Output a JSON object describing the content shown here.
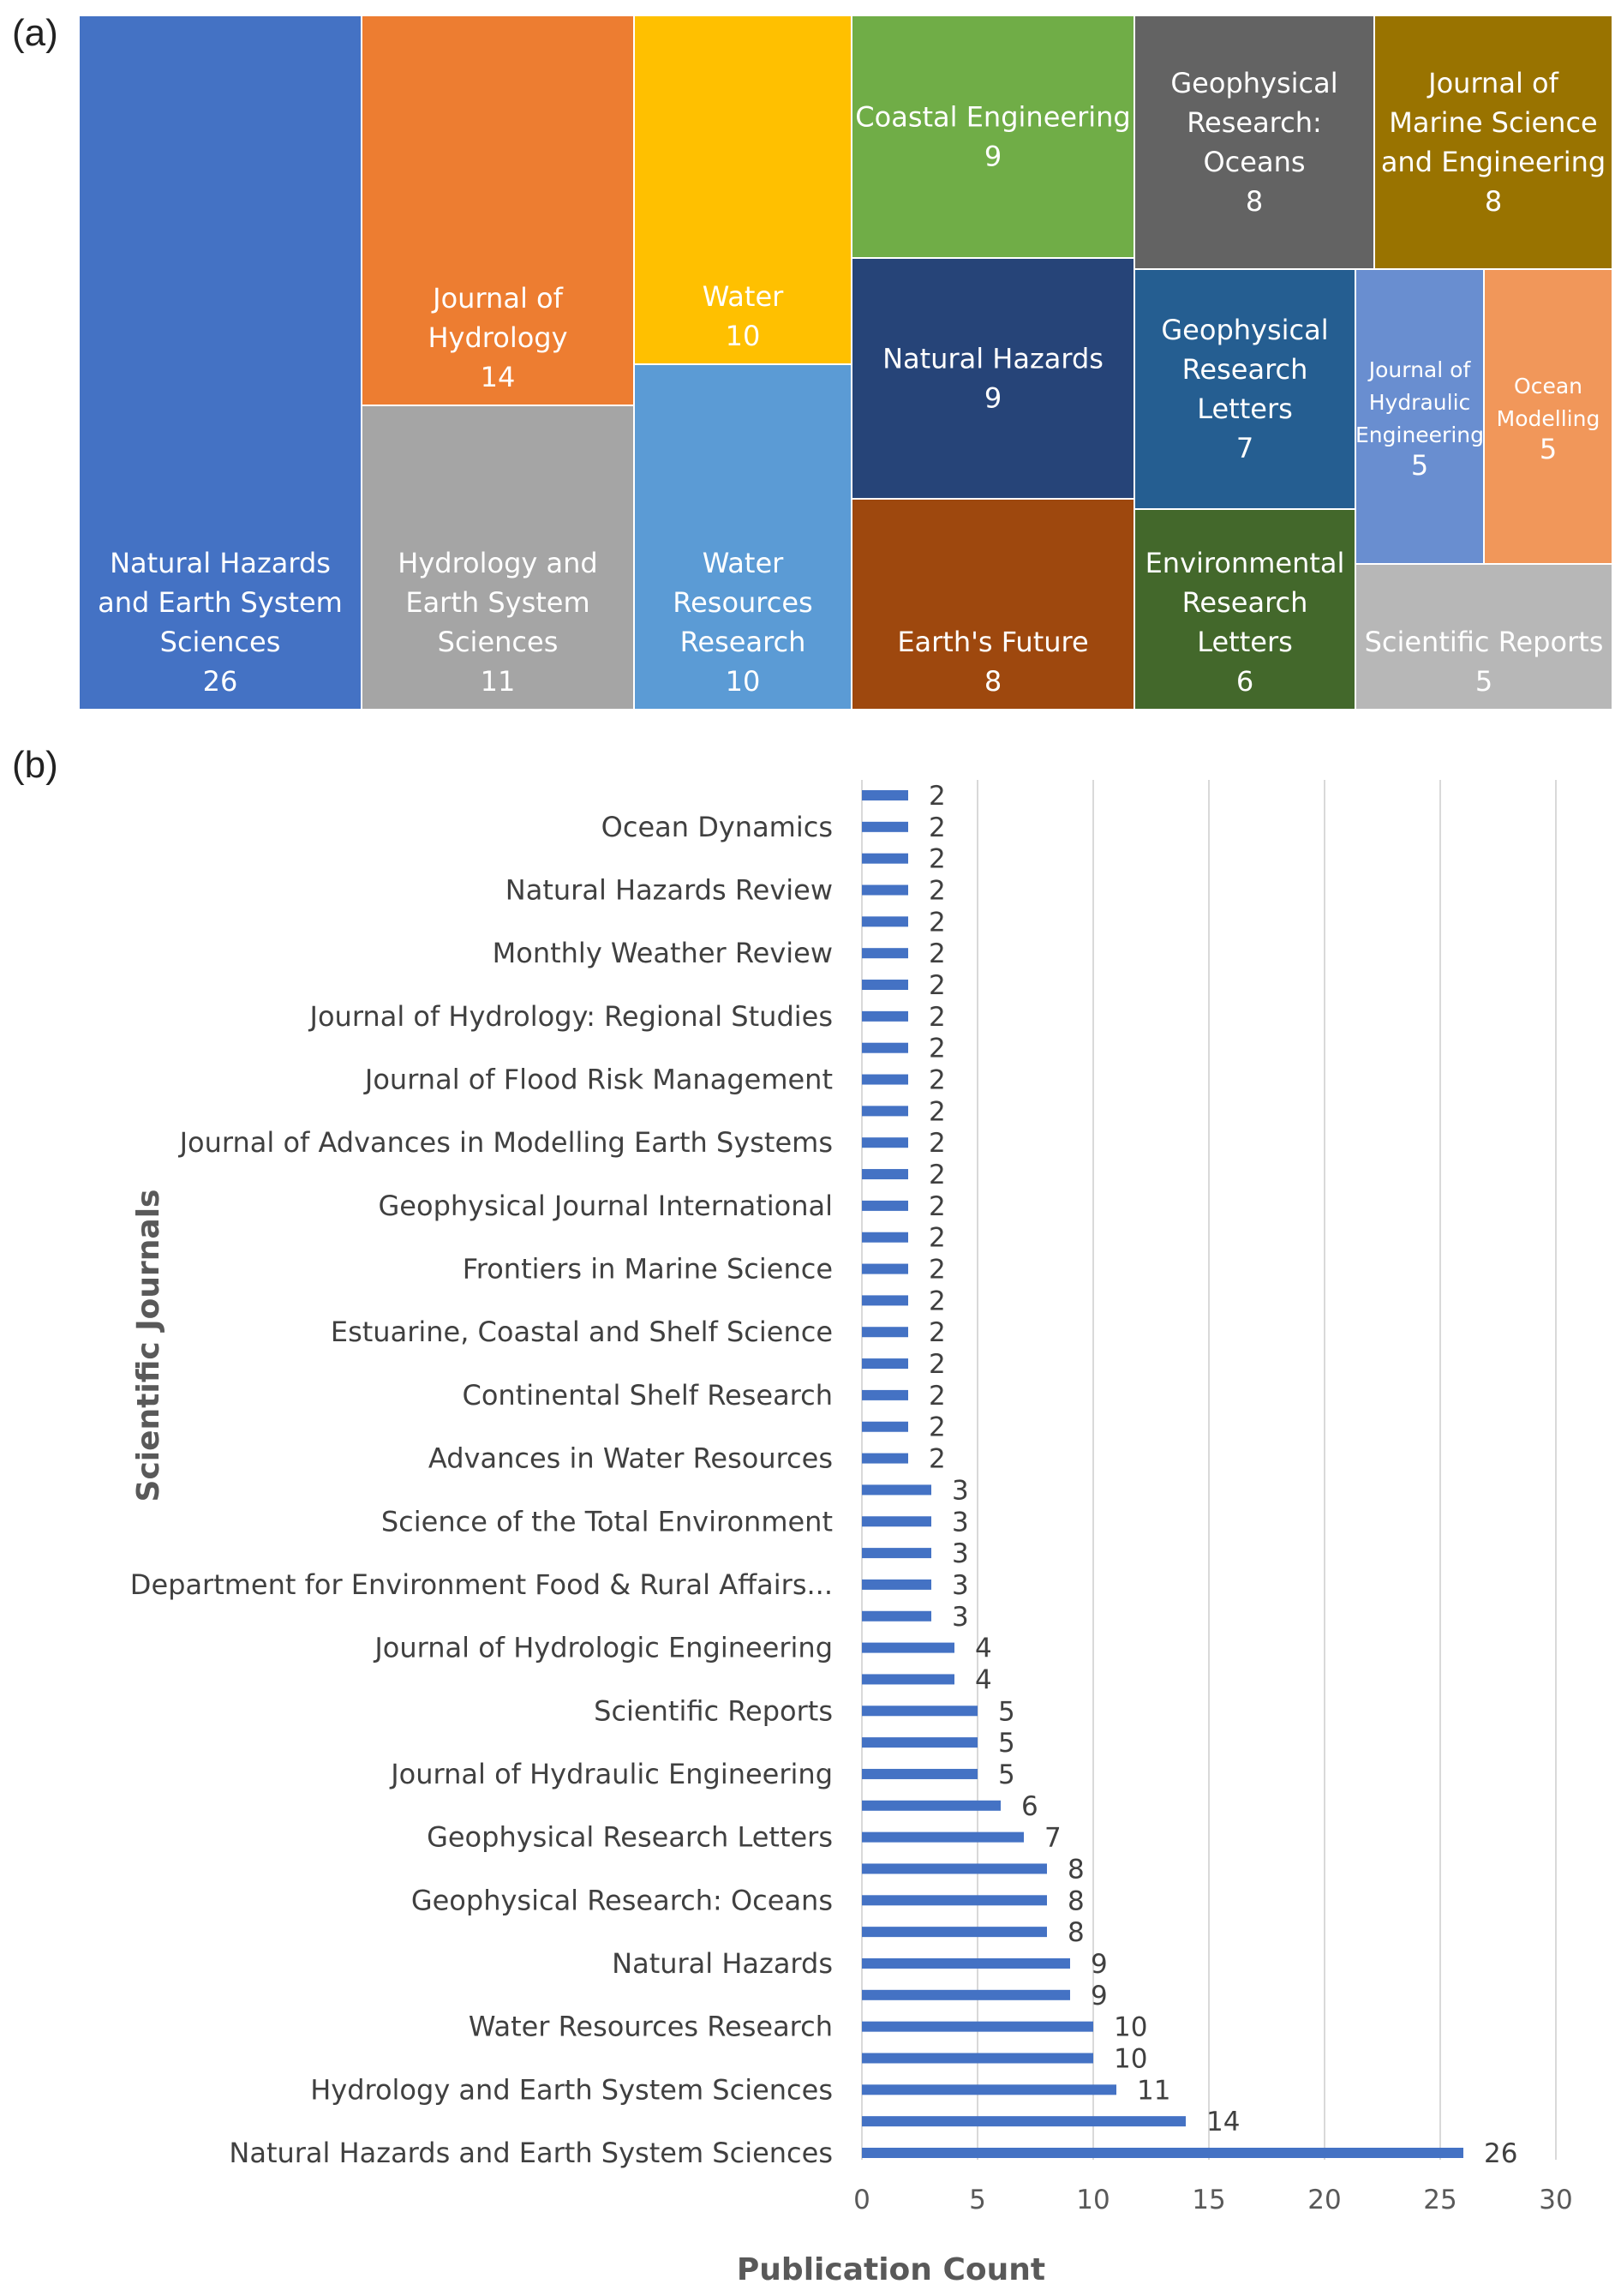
{
  "panel_labels": {
    "a": "(a)",
    "b": "(b)"
  },
  "chart_data": [
    {
      "type": "treemap",
      "title": "",
      "items": [
        {
          "name": "Natural Hazards and Earth System Sciences",
          "lines": [
            "Natural Hazards",
            "and Earth System",
            "Sciences"
          ],
          "value": 26,
          "color": "#4472C4"
        },
        {
          "name": "Journal of Hydrology",
          "lines": [
            "Journal of",
            "Hydrology"
          ],
          "value": 14,
          "color": "#ED7D31"
        },
        {
          "name": "Hydrology and Earth System Sciences",
          "lines": [
            "Hydrology and",
            "Earth System",
            "Sciences"
          ],
          "value": 11,
          "color": "#A5A5A5"
        },
        {
          "name": "Water",
          "lines": [
            "Water"
          ],
          "value": 10,
          "color": "#FFC000"
        },
        {
          "name": "Water Resources Research",
          "lines": [
            "Water",
            "Resources",
            "Research"
          ],
          "value": 10,
          "color": "#5B9BD5"
        },
        {
          "name": "Coastal Engineering",
          "lines": [
            "Coastal Engineering"
          ],
          "value": 9,
          "color": "#70AD47"
        },
        {
          "name": "Natural Hazards",
          "lines": [
            "Natural Hazards"
          ],
          "value": 9,
          "color": "#264478"
        },
        {
          "name": "Earth's Future",
          "lines": [
            "Earth's Future"
          ],
          "value": 8,
          "color": "#9E480E"
        },
        {
          "name": "Geophysical Research: Oceans",
          "lines": [
            "Geophysical",
            "Research:",
            "Oceans"
          ],
          "value": 8,
          "color": "#636363"
        },
        {
          "name": "Journal of Marine Science and Engineering",
          "lines": [
            "Journal of",
            "Marine Science",
            "and Engineering"
          ],
          "value": 8,
          "color": "#997300"
        },
        {
          "name": "Geophysical Research Letters",
          "lines": [
            "Geophysical",
            "Research",
            "Letters"
          ],
          "value": 7,
          "color": "#255E91"
        },
        {
          "name": "Environmental Research Letters",
          "lines": [
            "Environmental",
            "Research",
            "Letters"
          ],
          "value": 6,
          "color": "#43682B"
        },
        {
          "name": "Journal of Hydraulic Engineering",
          "lines": [
            "Journal of",
            "Hydraulic",
            "Engineering"
          ],
          "value": 5,
          "color": "#698ED0"
        },
        {
          "name": "Ocean Modelling",
          "lines": [
            "Ocean",
            "Modelling"
          ],
          "value": 5,
          "color": "#F1975A"
        },
        {
          "name": "Scientific Reports",
          "lines": [
            "Scientific Reports"
          ],
          "value": 5,
          "color": "#B7B7B7"
        }
      ]
    },
    {
      "type": "bar",
      "orientation": "horizontal",
      "title": "",
      "xlabel": "Publication Count",
      "ylabel": "Scientific Journals",
      "xlim": [
        0,
        30
      ],
      "xticks": [
        0,
        5,
        10,
        15,
        20,
        25,
        30
      ],
      "grid": true,
      "bar_color": "#4472C4",
      "categories_top_to_bottom": [
        "",
        "Ocean Dynamics",
        "",
        "Natural Hazards Review",
        "",
        "Monthly Weather Review",
        "",
        "Journal of Hydrology: Regional Studies",
        "",
        "Journal of Flood Risk Management",
        "",
        "Journal of Advances in Modelling Earth Systems",
        "",
        "Geophysical Journal International",
        "",
        "Frontiers in Marine Science",
        "",
        "Estuarine, Coastal and Shelf Science",
        "",
        "Continental Shelf Research",
        "",
        "Advances in Water Resources",
        "",
        "Science of the Total Environment",
        "",
        "Department for Environment Food & Rural Affairs...",
        "",
        "Journal of Hydrologic Engineering",
        "",
        "Scientific Reports",
        "",
        "Journal of Hydraulic Engineering",
        "",
        "Geophysical Research Letters",
        "",
        "Geophysical Research: Oceans",
        "",
        "Natural Hazards",
        "",
        "Water Resources Research",
        "",
        "Hydrology and Earth System Sciences",
        "",
        "Natural Hazards and Earth System Sciences"
      ],
      "values_top_to_bottom": [
        2,
        2,
        2,
        2,
        2,
        2,
        2,
        2,
        2,
        2,
        2,
        2,
        2,
        2,
        2,
        2,
        2,
        2,
        2,
        2,
        2,
        2,
        3,
        3,
        3,
        3,
        3,
        4,
        4,
        5,
        5,
        5,
        6,
        7,
        8,
        8,
        8,
        9,
        9,
        10,
        10,
        11,
        14,
        26
      ]
    }
  ]
}
